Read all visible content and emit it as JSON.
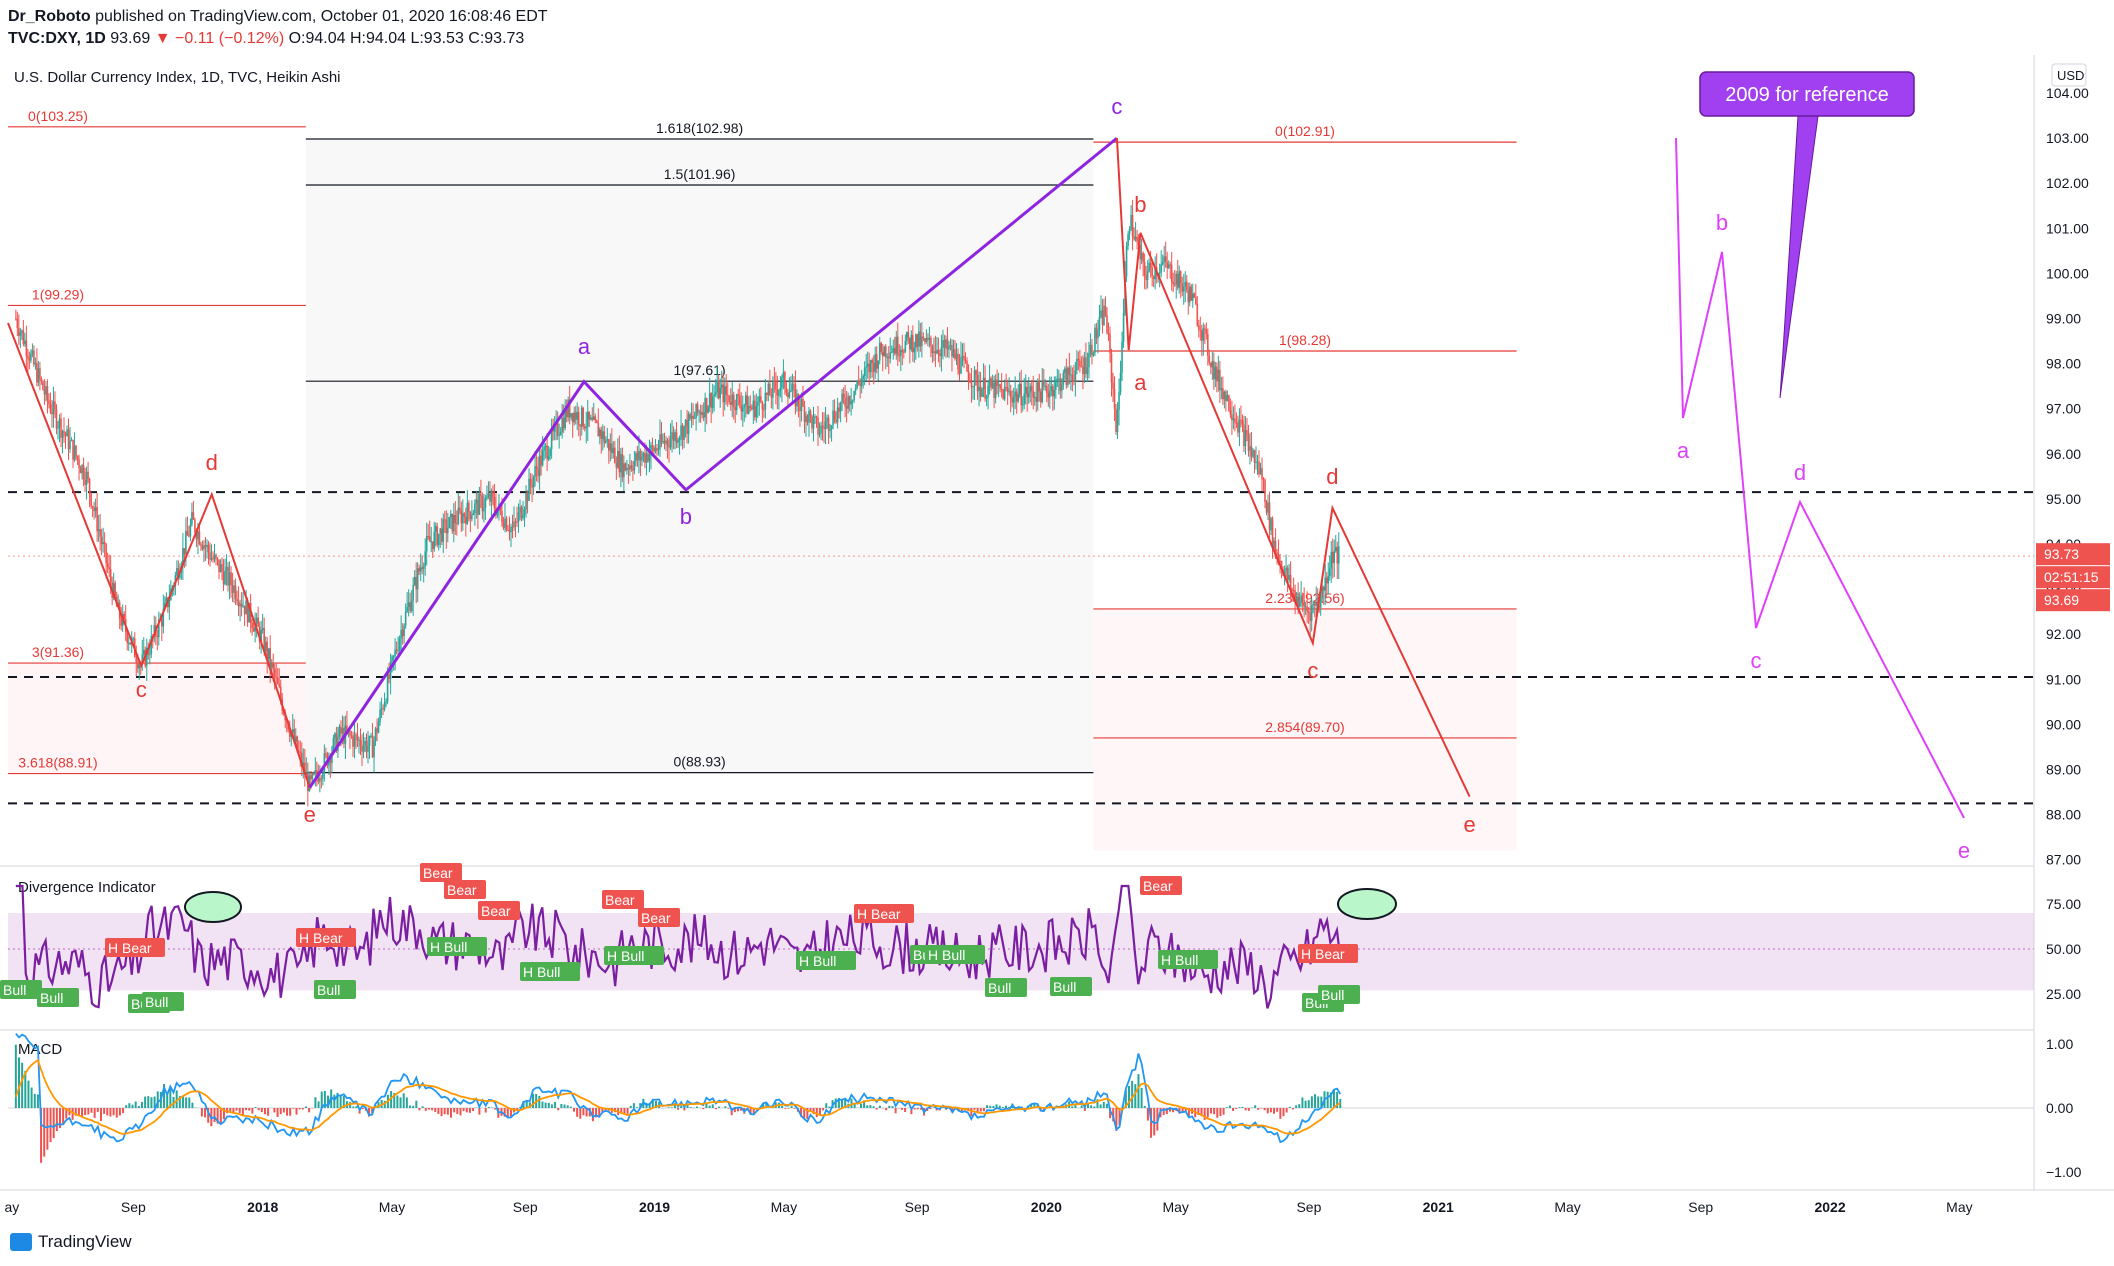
{
  "header": {
    "line1_author": "Dr_Roboto",
    "line1_rest": " published on TradingView.com, October 01, 2020 16:08:46 EDT",
    "symbol": "TVC:DXY, 1D",
    "price": "93.69",
    "change": "−0.11 (−0.12%)",
    "ohlc": "O:94.04 H:94.04 L:93.53 C:93.73"
  },
  "chart_title": "U.S. Dollar Currency Index, 1D, TVC, Heikin Ashi",
  "currency_badge": "USD",
  "callout": "2009 for reference",
  "price_tags": {
    "last": "93.73",
    "countdown": "02:51:15",
    "close": "93.69"
  },
  "panes": {
    "indicator": "Divergence Indicator",
    "macd": "MACD"
  },
  "brand": "TradingView",
  "colors": {
    "up": "#26a69a",
    "down": "#ef5350",
    "wave": "#9c27b0",
    "red_wave": "#e53935",
    "magenta": "#e040fb",
    "rsi": "#7b1fa2",
    "macd": "#2196f3",
    "signal": "#ff9800"
  },
  "chart_data": [
    {
      "type": "candlestick",
      "title": "U.S. Dollar Currency Index, 1D, TVC, Heikin Ashi",
      "x_ticks": [
        "ay",
        "Sep",
        "2018",
        "May",
        "Sep",
        "2019",
        "May",
        "Sep",
        "2020",
        "May",
        "Sep",
        "2021",
        "May",
        "Sep",
        "2022",
        "May"
      ],
      "y_ticks": [
        "104.00",
        "103.00",
        "102.00",
        "101.00",
        "100.00",
        "99.00",
        "98.00",
        "97.00",
        "96.00",
        "95.00",
        "94.00",
        "93.00",
        "92.00",
        "91.00",
        "90.00",
        "89.00",
        "88.00",
        "87.00"
      ],
      "ylim": [
        87,
        104
      ],
      "price_path": [
        [
          2017.37,
          99.0
        ],
        [
          2017.45,
          97.2
        ],
        [
          2017.55,
          95.5
        ],
        [
          2017.63,
          92.5
        ],
        [
          2017.69,
          91.3
        ],
        [
          2017.75,
          92.5
        ],
        [
          2017.82,
          94.5
        ],
        [
          2017.87,
          93.7
        ],
        [
          2017.93,
          93.0
        ],
        [
          2018.0,
          91.9
        ],
        [
          2018.07,
          89.9
        ],
        [
          2018.12,
          88.6
        ],
        [
          2018.2,
          89.8
        ],
        [
          2018.28,
          89.5
        ],
        [
          2018.35,
          92.0
        ],
        [
          2018.42,
          94.0
        ],
        [
          2018.5,
          94.6
        ],
        [
          2018.58,
          95.0
        ],
        [
          2018.64,
          94.3
        ],
        [
          2018.7,
          95.7
        ],
        [
          2018.78,
          97.0
        ],
        [
          2018.86,
          96.5
        ],
        [
          2018.92,
          95.7
        ],
        [
          2019.0,
          96.1
        ],
        [
          2019.08,
          96.6
        ],
        [
          2019.16,
          97.4
        ],
        [
          2019.25,
          97.0
        ],
        [
          2019.33,
          97.6
        ],
        [
          2019.42,
          96.5
        ],
        [
          2019.5,
          97.3
        ],
        [
          2019.58,
          98.3
        ],
        [
          2019.66,
          98.5
        ],
        [
          2019.75,
          98.3
        ],
        [
          2019.83,
          97.5
        ],
        [
          2019.92,
          97.3
        ],
        [
          2020.0,
          97.4
        ],
        [
          2020.1,
          98.0
        ],
        [
          2020.15,
          99.2
        ],
        [
          2020.18,
          96.5
        ],
        [
          2020.21,
          101.3
        ],
        [
          2020.25,
          100.0
        ],
        [
          2020.3,
          100.2
        ],
        [
          2020.37,
          99.5
        ],
        [
          2020.43,
          97.8
        ],
        [
          2020.5,
          96.5
        ],
        [
          2020.55,
          95.5
        ],
        [
          2020.58,
          94.0
        ],
        [
          2020.63,
          92.9
        ],
        [
          2020.67,
          92.5
        ],
        [
          2020.7,
          92.8
        ],
        [
          2020.73,
          93.8
        ],
        [
          2020.75,
          93.7
        ]
      ],
      "fib_levels": [
        {
          "label": "0(103.25)",
          "value": 103.25
        },
        {
          "label": "1(99.29)",
          "value": 99.29
        },
        {
          "label": "3(91.36)",
          "value": 91.36
        },
        {
          "label": "3.618(88.91)",
          "value": 88.91
        },
        {
          "label": "1.618(102.98)",
          "value": 102.98
        },
        {
          "label": "1.5(101.96)",
          "value": 101.96
        },
        {
          "label": "1(97.61)",
          "value": 97.61
        },
        {
          "label": "0(88.93)",
          "value": 88.93
        },
        {
          "label": "0(102.91)",
          "value": 102.91
        },
        {
          "label": "1(98.28)",
          "value": 98.28
        },
        {
          "label": "2.236(92.56)",
          "value": 92.56
        },
        {
          "label": "2.854(89.70)",
          "value": 89.7
        }
      ],
      "dashed_levels": [
        95.15,
        91.05,
        88.25
      ],
      "wave_labels": {
        "red_left": [
          "c",
          "d",
          "c",
          "e"
        ],
        "purple": [
          "a",
          "b",
          "c"
        ],
        "red_right": [
          "b",
          "a",
          "d",
          "c",
          "e"
        ],
        "magenta": [
          "a",
          "b",
          "c",
          "d",
          "e"
        ]
      }
    },
    {
      "type": "line",
      "title": "Divergence Indicator",
      "y_ticks": [
        "75.00",
        "50.00",
        "25.00"
      ],
      "ylim": [
        0,
        100
      ],
      "band": [
        27,
        70
      ],
      "bear_labels": [
        "H Bear",
        "H Bear",
        "Bear",
        "Bear",
        "Bear",
        "Bear",
        "Bear",
        "H Bear",
        "Bear"
      ],
      "bull_labels": [
        "Bull",
        "Bull",
        "Bull",
        "Bull",
        "Bull",
        "H Bull",
        "H Bull",
        "H Bull",
        "H Bull",
        "Bu",
        "H Bull",
        "Bull",
        "Bull",
        "H Bull",
        "Bull",
        "Bull"
      ],
      "h_bear_late": "H Bear"
    },
    {
      "type": "line",
      "title": "MACD",
      "y_ticks": [
        "1.00",
        "0.00",
        "-1.00"
      ],
      "ylim": [
        -1.2,
        1.2
      ]
    }
  ]
}
